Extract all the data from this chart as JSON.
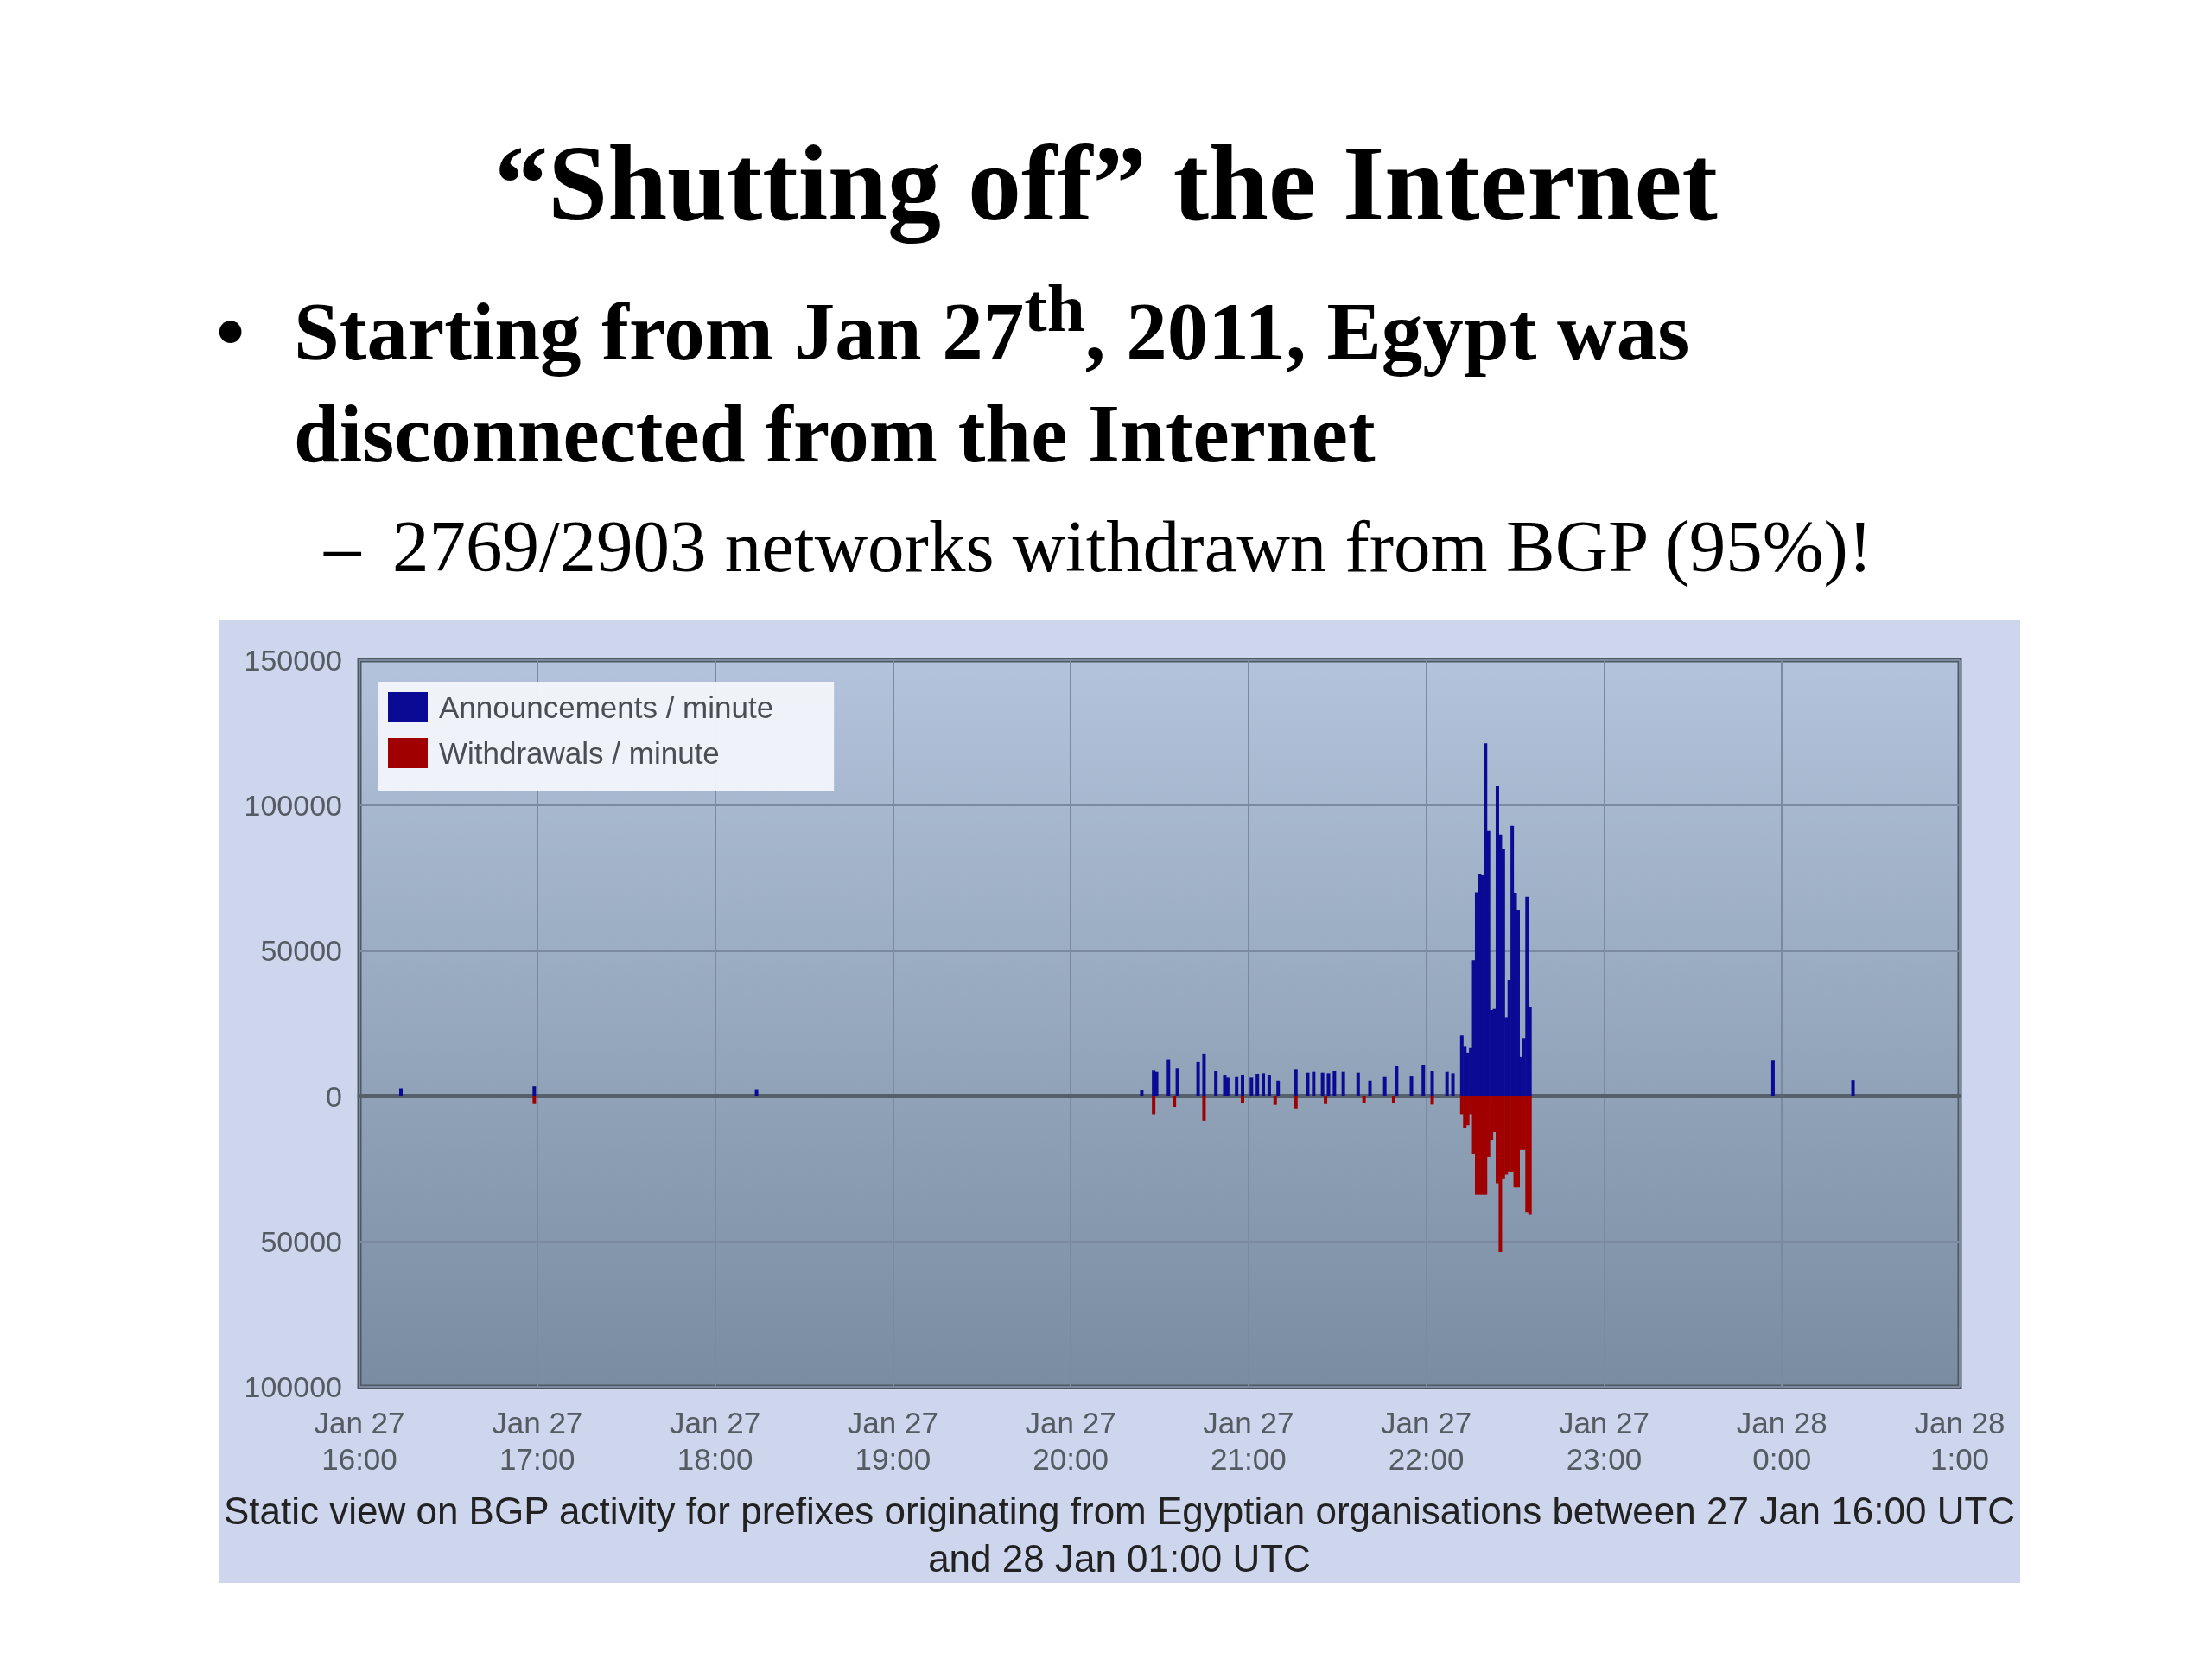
{
  "chart_data": {
    "type": "bar",
    "title": "“Shutting off” the Internet",
    "subtitle": "• Starting from Jan 27$^{th}$, 2011, Egypt was disconnected from the Internet",
    "annotations": [
      "– 2769/2903 networks withdrawn from BGP (95%)!",
      "Static view on BGP activity for prefixes originating from Egyptian organisations between 27 Jan 16:00 UTC and 28 Jan 01:00 UTC"
    ],
    "series": [
      {
        "name": "Announcements / minute",
        "color": "#0a0a94",
        "x": [
          "2011-01-27T16:14",
          "2011-01-27T16:59",
          "2011-01-27T18:14",
          "2011-01-27T20:24",
          "2011-01-27T20:28",
          "2011-01-27T20:29",
          "2011-01-27T20:33",
          "2011-01-27T20:36",
          "2011-01-27T20:43",
          "2011-01-27T20:45",
          "2011-01-27T20:49",
          "2011-01-27T20:52",
          "2011-01-27T20:53",
          "2011-01-27T20:56",
          "2011-01-27T20:58",
          "2011-01-27T21:01",
          "2011-01-27T21:03",
          "2011-01-27T21:05",
          "2011-01-27T21:07",
          "2011-01-27T21:10",
          "2011-01-27T21:16",
          "2011-01-27T21:20",
          "2011-01-27T21:22",
          "2011-01-27T21:25",
          "2011-01-27T21:27",
          "2011-01-27T21:29",
          "2011-01-27T21:32",
          "2011-01-27T21:37",
          "2011-01-27T21:41",
          "2011-01-27T21:46",
          "2011-01-27T21:50",
          "2011-01-27T21:55",
          "2011-01-27T21:59",
          "2011-01-27T22:02",
          "2011-01-27T22:07",
          "2011-01-27T22:09",
          "2011-01-27T22:12",
          "2011-01-27T22:13",
          "2011-01-27T22:14",
          "2011-01-27T22:15",
          "2011-01-27T22:16",
          "2011-01-27T22:17",
          "2011-01-27T22:18",
          "2011-01-27T22:19",
          "2011-01-27T22:20",
          "2011-01-27T22:21",
          "2011-01-27T22:22",
          "2011-01-27T22:23",
          "2011-01-27T22:24",
          "2011-01-27T22:25",
          "2011-01-27T22:26",
          "2011-01-27T22:27",
          "2011-01-27T22:28",
          "2011-01-27T22:29",
          "2011-01-27T22:30",
          "2011-01-27T22:31",
          "2011-01-27T22:32",
          "2011-01-27T22:33",
          "2011-01-27T22:34",
          "2011-01-27T22:35",
          "2011-01-27T23:57",
          "2011-01-28T00:24"
        ],
        "values": [
          2700,
          3400,
          2400,
          2000,
          9000,
          8300,
          12500,
          9600,
          11800,
          14500,
          8800,
          7300,
          6300,
          6800,
          7300,
          6300,
          7600,
          7800,
          7300,
          5300,
          9300,
          8000,
          8300,
          8000,
          7800,
          8600,
          8300,
          8000,
          5300,
          6800,
          10300,
          7000,
          10600,
          8800,
          8300,
          7800,
          20900,
          17000,
          14800,
          16600,
          46800,
          70200,
          76400,
          76000,
          121400,
          91200,
          29600,
          30000,
          106600,
          90000,
          85000,
          27100,
          40000,
          93000,
          70000,
          64100,
          13600,
          20000,
          68600,
          30800,
          12300,
          5500
        ]
      },
      {
        "name": "Withdrawals / minute",
        "color": "#a00000",
        "x": [
          "2011-01-27T16:59",
          "2011-01-27T20:28",
          "2011-01-27T20:35",
          "2011-01-27T20:45",
          "2011-01-27T20:58",
          "2011-01-27T21:09",
          "2011-01-27T21:16",
          "2011-01-27T21:26",
          "2011-01-27T21:39",
          "2011-01-27T21:49",
          "2011-01-27T22:02",
          "2011-01-27T22:12",
          "2011-01-27T22:13",
          "2011-01-27T22:14",
          "2011-01-27T22:15",
          "2011-01-27T22:16",
          "2011-01-27T22:17",
          "2011-01-27T22:18",
          "2011-01-27T22:19",
          "2011-01-27T22:20",
          "2011-01-27T22:21",
          "2011-01-27T22:22",
          "2011-01-27T22:23",
          "2011-01-27T22:24",
          "2011-01-27T22:25",
          "2011-01-27T22:26",
          "2011-01-27T22:27",
          "2011-01-27T22:28",
          "2011-01-27T22:29",
          "2011-01-27T22:30",
          "2011-01-27T22:31",
          "2011-01-27T22:32",
          "2011-01-27T22:33",
          "2011-01-27T22:34",
          "2011-01-27T22:35"
        ],
        "values": [
          -2700,
          -6200,
          -3700,
          -8400,
          -2500,
          -3000,
          -4200,
          -2700,
          -2500,
          -2400,
          -2900,
          -6200,
          -11100,
          -10000,
          -6200,
          -20000,
          -33900,
          -33900,
          -33900,
          -33900,
          -20900,
          -15000,
          -12300,
          -30000,
          -53600,
          -28300,
          -27000,
          -25900,
          -26000,
          -31400,
          -31400,
          -18500,
          -18500,
          -40000,
          -40700
        ]
      }
    ],
    "xlim": [
      "2011-01-27T16:00",
      "2011-01-28T01:00"
    ],
    "xticks": [
      {
        "value": "2011-01-27T16:00",
        "label": "Jan 27\n16:00"
      },
      {
        "value": "2011-01-27T17:00",
        "label": "Jan 27\n17:00"
      },
      {
        "value": "2011-01-27T18:00",
        "label": "Jan 27\n18:00"
      },
      {
        "value": "2011-01-27T19:00",
        "label": "Jan 27\n19:00"
      },
      {
        "value": "2011-01-27T20:00",
        "label": "Jan 27\n20:00"
      },
      {
        "value": "2011-01-27T21:00",
        "label": "Jan 27\n21:00"
      },
      {
        "value": "2011-01-27T22:00",
        "label": "Jan 27\n22:00"
      },
      {
        "value": "2011-01-27T23:00",
        "label": "Jan 27\n23:00"
      },
      {
        "value": "2011-01-28T00:00",
        "label": "Jan 28\n0:00"
      },
      {
        "value": "2011-01-28T01:00",
        "label": "Jan 28\n1:00"
      }
    ],
    "ylim": [
      -100000,
      150000
    ],
    "yticks": [
      {
        "value": -100000,
        "label": "100000"
      },
      {
        "value": -50000,
        "label": "50000"
      },
      0,
      50000,
      100000,
      150000
    ],
    "grid": true,
    "legend": "top left"
  }
}
